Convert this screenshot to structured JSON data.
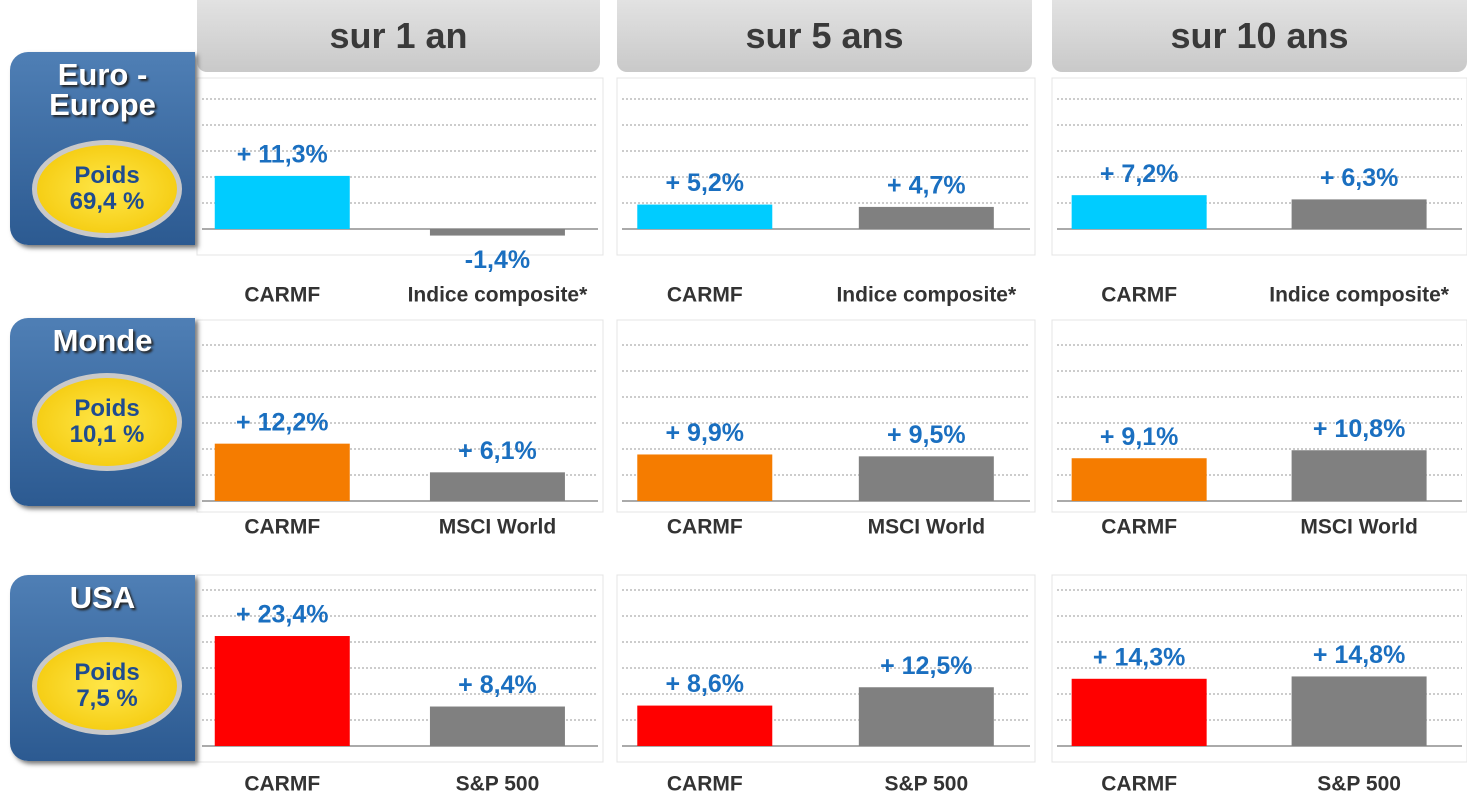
{
  "columns": [
    "sur 1 an",
    "sur 5 ans",
    "sur 10 ans"
  ],
  "rows": [
    {
      "label": "Euro - Europe",
      "weight_label": "Poids",
      "weight": "69,4 %"
    },
    {
      "label": "Monde",
      "weight_label": "Poids",
      "weight": "10,1 %"
    },
    {
      "label": "USA",
      "weight_label": "Poids",
      "weight": "7,5 %"
    }
  ],
  "chart_data": [
    {
      "type": "bar",
      "categories": [
        "CARMF",
        "Indice composite*"
      ],
      "values": [
        11.3,
        -1.4
      ],
      "value_labels": [
        "+ 11,3%",
        "-1,4%"
      ],
      "colors": [
        "#00ccff",
        "#808080"
      ]
    },
    {
      "type": "bar",
      "categories": [
        "CARMF",
        "Indice composite*"
      ],
      "values": [
        5.2,
        4.7
      ],
      "value_labels": [
        "+ 5,2%",
        "+ 4,7%"
      ],
      "colors": [
        "#00ccff",
        "#808080"
      ]
    },
    {
      "type": "bar",
      "categories": [
        "CARMF",
        "Indice composite*"
      ],
      "values": [
        7.2,
        6.3
      ],
      "value_labels": [
        "+ 7,2%",
        "+ 6,3%"
      ],
      "colors": [
        "#00ccff",
        "#808080"
      ]
    },
    {
      "type": "bar",
      "categories": [
        "CARMF",
        "MSCI World"
      ],
      "values": [
        12.2,
        6.1
      ],
      "value_labels": [
        "+ 12,2%",
        "+ 6,1%"
      ],
      "colors": [
        "#f57c00",
        "#808080"
      ]
    },
    {
      "type": "bar",
      "categories": [
        "CARMF",
        "MSCI World"
      ],
      "values": [
        9.9,
        9.5
      ],
      "value_labels": [
        "+ 9,9%",
        "+ 9,5%"
      ],
      "colors": [
        "#f57c00",
        "#808080"
      ]
    },
    {
      "type": "bar",
      "categories": [
        "CARMF",
        "MSCI World"
      ],
      "values": [
        9.1,
        10.8
      ],
      "value_labels": [
        "+ 9,1%",
        "+ 10,8%"
      ],
      "colors": [
        "#f57c00",
        "#808080"
      ]
    },
    {
      "type": "bar",
      "categories": [
        "CARMF",
        "S&P 500"
      ],
      "values": [
        23.4,
        8.4
      ],
      "value_labels": [
        "+ 23,4%",
        "+ 8,4%"
      ],
      "colors": [
        "#ff0000",
        "#808080"
      ]
    },
    {
      "type": "bar",
      "categories": [
        "CARMF",
        "S&P 500"
      ],
      "values": [
        8.6,
        12.5
      ],
      "value_labels": [
        "+ 8,6%",
        "+ 12,5%"
      ],
      "colors": [
        "#ff0000",
        "#808080"
      ]
    },
    {
      "type": "bar",
      "categories": [
        "CARMF",
        "S&P 500"
      ],
      "values": [
        14.3,
        14.8
      ],
      "value_labels": [
        "+ 14,3%",
        "+ 14,8%"
      ],
      "colors": [
        "#ff0000",
        "#808080"
      ]
    }
  ]
}
